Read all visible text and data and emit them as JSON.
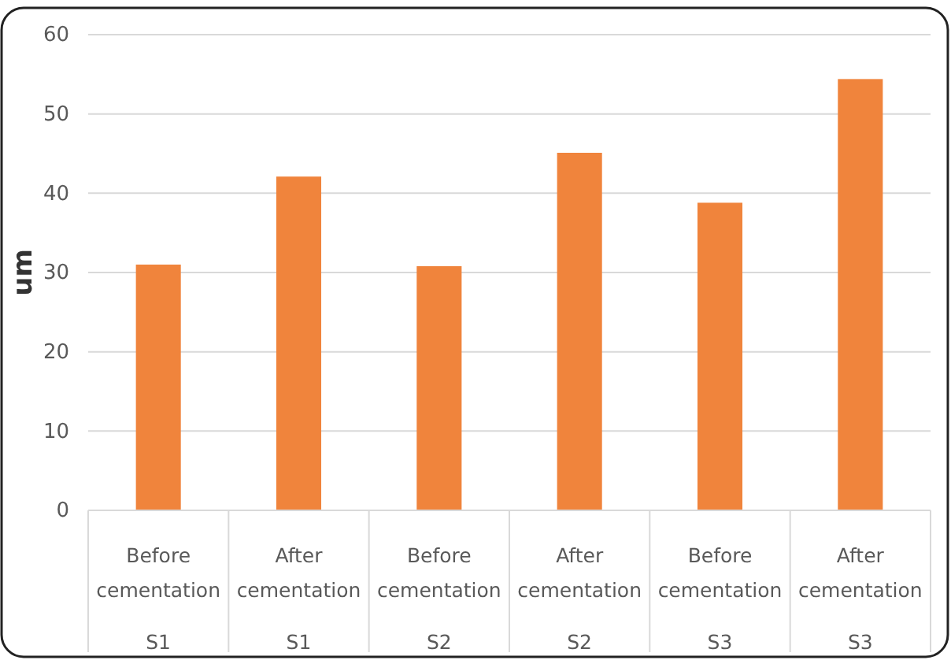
{
  "chart_data": {
    "type": "bar",
    "ylabel": "um",
    "categories": [
      "Before cementation\nS1",
      "After cementation\nS1",
      "Before cementation\nS2",
      "After cementation\nS2",
      "Before cementation\nS3",
      "After cementation\nS3"
    ],
    "values": [
      31.0,
      42.1,
      30.8,
      45.1,
      38.8,
      54.4
    ],
    "color": "#f0843c",
    "ylim": [
      0,
      60
    ],
    "yticks": [
      0,
      10,
      20,
      30,
      40,
      50,
      60
    ],
    "grid": "y"
  }
}
